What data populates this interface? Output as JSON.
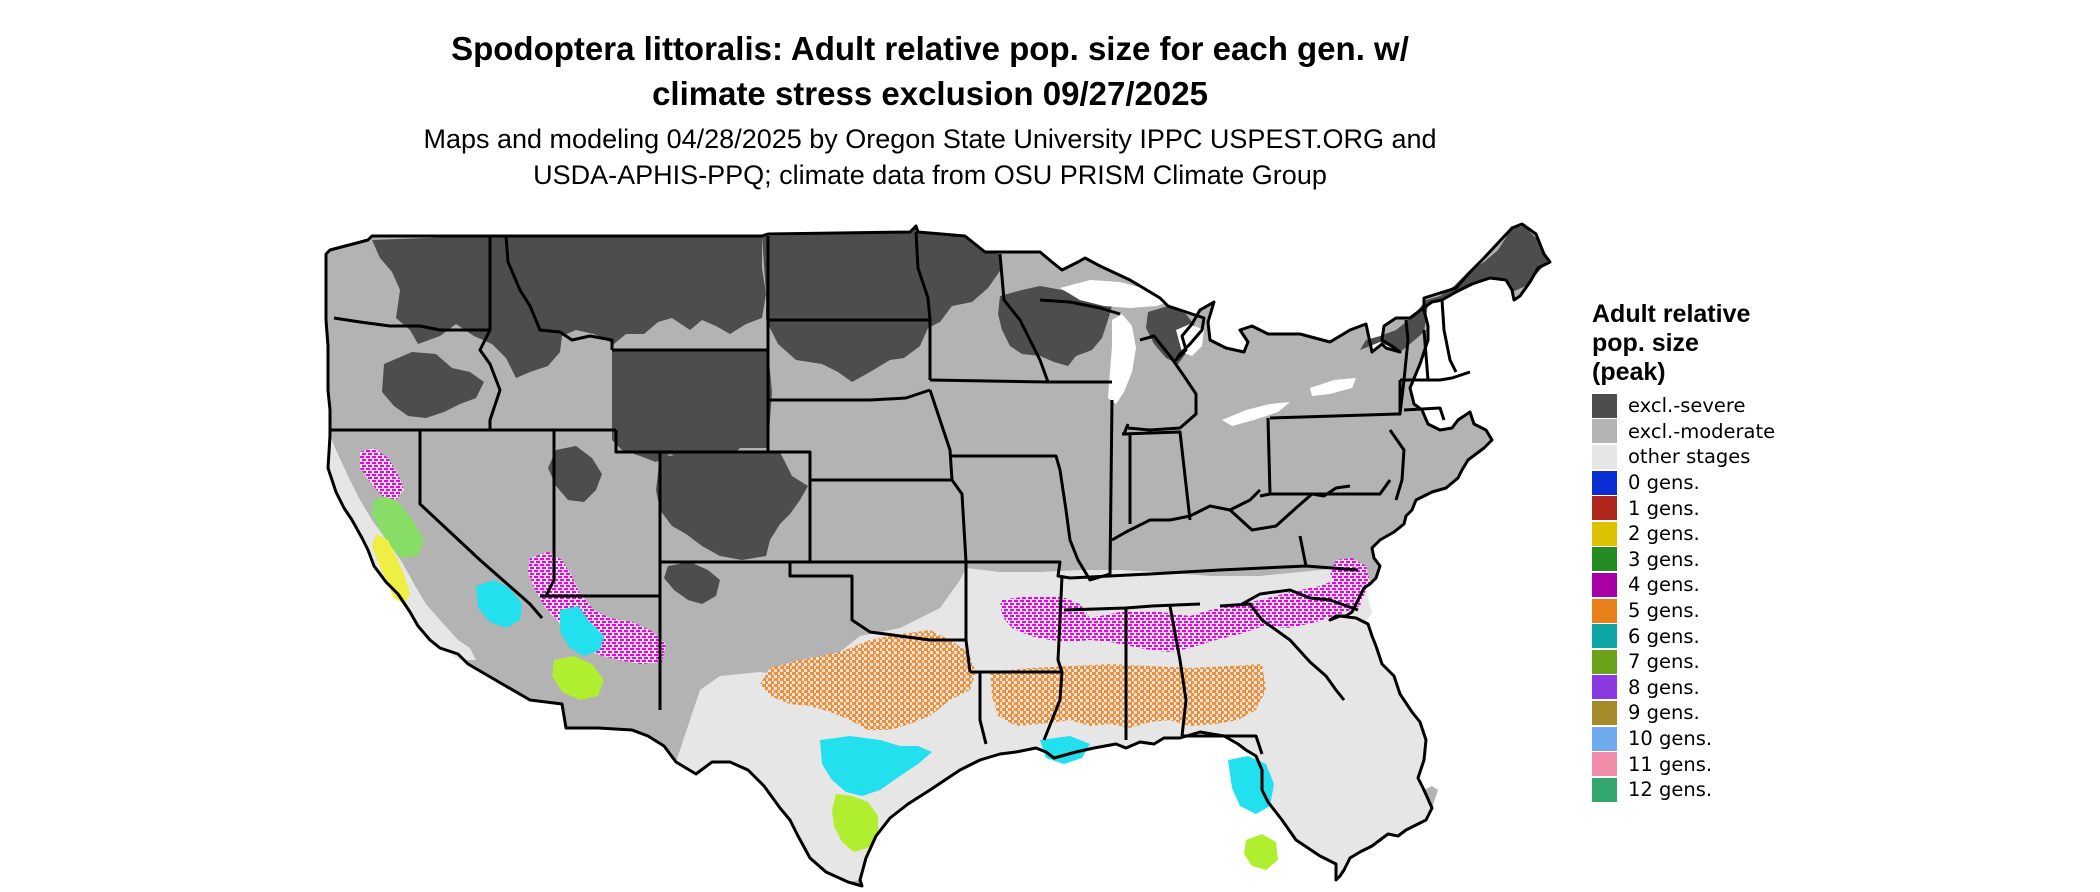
{
  "title": {
    "line1": "Spodoptera littoralis: Adult relative pop. size for each gen. w/",
    "line2": "climate stress exclusion 09/27/2025"
  },
  "subtitle": {
    "line1": "Maps and modeling 04/28/2025 by Oregon State University IPPC USPEST.ORG and",
    "line2": "USDA-APHIS-PPQ; climate data from OSU PRISM Climate Group"
  },
  "legend": {
    "title_lines": [
      "Adult relative",
      "pop. size",
      "(peak)"
    ],
    "items": [
      {
        "label": "excl.-severe",
        "color": "#4d4d4d"
      },
      {
        "label": "excl.-moderate",
        "color": "#b3b3b3"
      },
      {
        "label": "other stages",
        "color": "#e6e6e6"
      },
      {
        "label": "0 gens.",
        "color": "#0a2fd4"
      },
      {
        "label": "1 gens.",
        "color": "#b0261a"
      },
      {
        "label": "2 gens.",
        "color": "#dcc200"
      },
      {
        "label": "3 gens.",
        "color": "#228b22"
      },
      {
        "label": "4 gens.",
        "color": "#a800a8"
      },
      {
        "label": "5 gens.",
        "color": "#e8801a"
      },
      {
        "label": "6 gens.",
        "color": "#0fa6a6"
      },
      {
        "label": "7 gens.",
        "color": "#6aa31a"
      },
      {
        "label": "8 gens.",
        "color": "#8a3ae0"
      },
      {
        "label": "9 gens.",
        "color": "#a68a2a"
      },
      {
        "label": "10 gens.",
        "color": "#6eaaee"
      },
      {
        "label": "11 gens.",
        "color": "#f08ca8"
      },
      {
        "label": "12 gens.",
        "color": "#32a86e"
      }
    ]
  },
  "map_colors": {
    "severe": "#4d4d4d",
    "moderate": "#b3b3b3",
    "other": "#e6e6e6",
    "gen4": "#ee00ee",
    "gen5": "#f0913a",
    "gen6": "#22e0ee",
    "gen7": "#b0ee30",
    "gen3": "#88dd66",
    "gen2": "#eeee44",
    "border": "#000000"
  }
}
